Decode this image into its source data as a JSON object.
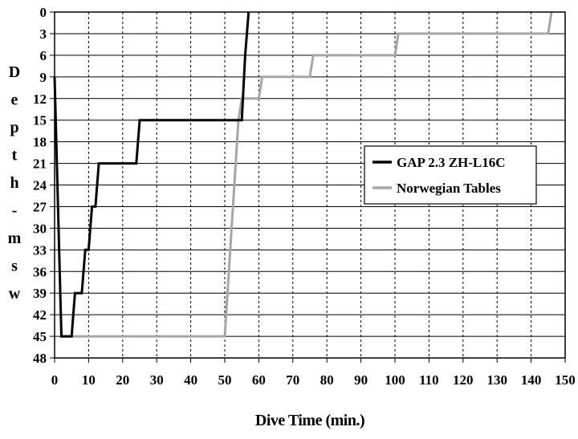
{
  "chart_data": {
    "type": "line",
    "title": "",
    "xlabel": "Dive Time (min.)",
    "ylabel": "Depth - msw",
    "ylabel_chars": [
      "D",
      "e",
      "p",
      "t",
      "h",
      "-",
      "m",
      "s",
      "w"
    ],
    "xlim": [
      0,
      150
    ],
    "ylim": [
      0,
      48
    ],
    "y_inverted": true,
    "x_ticks": [
      0,
      10,
      20,
      30,
      40,
      50,
      60,
      70,
      80,
      90,
      100,
      110,
      120,
      130,
      140,
      150
    ],
    "y_ticks": [
      0,
      3,
      6,
      9,
      12,
      15,
      18,
      21,
      24,
      27,
      30,
      33,
      36,
      39,
      42,
      45,
      48
    ],
    "grid": {
      "horizontal": "solid",
      "vertical": "dashed"
    },
    "legend_position": "right",
    "series": [
      {
        "name": "GAP 2.3 ZH-L16C",
        "color": "#000000",
        "x": [
          0,
          2,
          5,
          6,
          8,
          9,
          10,
          11,
          12,
          13,
          23,
          24,
          25,
          55,
          56,
          57
        ],
        "y": [
          9,
          45,
          45,
          39,
          39,
          33,
          33,
          27,
          27,
          21,
          21,
          21,
          15,
          15,
          6,
          0
        ]
      },
      {
        "name": "Norwegian Tables",
        "color": "#a6a6a6",
        "x": [
          2,
          50,
          52,
          54,
          55,
          60,
          61,
          75,
          76,
          100,
          101,
          145,
          146
        ],
        "y": [
          45,
          45,
          30,
          15,
          12,
          12,
          9,
          9,
          6,
          6,
          3,
          3,
          0
        ]
      }
    ]
  }
}
